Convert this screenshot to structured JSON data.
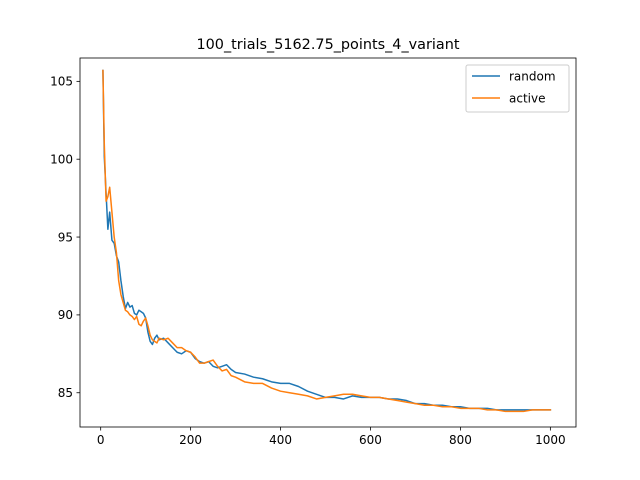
{
  "chart_data": {
    "type": "line",
    "title": "100_trials_5162.75_points_4_variant",
    "xlabel": "",
    "ylabel": "",
    "xlim": [
      -46,
      1057
    ],
    "ylim": [
      82.8,
      106.5
    ],
    "xticks": [
      0,
      200,
      400,
      600,
      800,
      1000
    ],
    "yticks": [
      85,
      90,
      95,
      100,
      105
    ],
    "xtick_labels": [
      "0",
      "200",
      "400",
      "600",
      "800",
      "1000"
    ],
    "ytick_labels": [
      "85",
      "90",
      "95",
      "100",
      "105"
    ],
    "grid": false,
    "legend_position": "top-right",
    "series": [
      {
        "name": "random",
        "color": "#1f77b4",
        "x": [
          5,
          8,
          12,
          16,
          20,
          25,
          30,
          35,
          40,
          45,
          50,
          55,
          60,
          65,
          70,
          75,
          80,
          85,
          90,
          95,
          100,
          105,
          110,
          115,
          120,
          125,
          130,
          140,
          150,
          160,
          170,
          180,
          190,
          200,
          210,
          220,
          230,
          240,
          250,
          260,
          270,
          280,
          290,
          300,
          320,
          340,
          360,
          380,
          400,
          420,
          440,
          460,
          480,
          500,
          520,
          540,
          560,
          580,
          600,
          620,
          640,
          660,
          680,
          700,
          720,
          740,
          760,
          780,
          800,
          820,
          840,
          860,
          880,
          900,
          920,
          940,
          960,
          980,
          1000
        ],
        "values": [
          105.7,
          100.2,
          97.8,
          95.5,
          96.6,
          94.8,
          94.6,
          93.8,
          93.4,
          92.2,
          91.2,
          90.4,
          90.8,
          90.5,
          90.6,
          90.1,
          90.0,
          90.3,
          90.2,
          90.1,
          89.8,
          88.9,
          88.3,
          88.1,
          88.5,
          88.7,
          88.4,
          88.5,
          88.2,
          87.9,
          87.6,
          87.5,
          87.7,
          87.6,
          87.2,
          87.0,
          86.9,
          87.0,
          86.7,
          86.6,
          86.7,
          86.8,
          86.5,
          86.3,
          86.2,
          86.0,
          85.9,
          85.7,
          85.6,
          85.6,
          85.4,
          85.1,
          84.9,
          84.7,
          84.7,
          84.6,
          84.8,
          84.7,
          84.7,
          84.7,
          84.6,
          84.6,
          84.5,
          84.3,
          84.3,
          84.2,
          84.2,
          84.1,
          84.1,
          84.0,
          84.0,
          84.0,
          83.9,
          83.9,
          83.9,
          83.9,
          83.9,
          83.9,
          83.9
        ]
      },
      {
        "name": "active",
        "color": "#ff7f0e",
        "x": [
          5,
          8,
          12,
          16,
          20,
          25,
          30,
          35,
          40,
          45,
          50,
          55,
          60,
          65,
          70,
          75,
          80,
          85,
          90,
          95,
          100,
          105,
          110,
          115,
          120,
          125,
          130,
          140,
          150,
          160,
          170,
          180,
          190,
          200,
          210,
          220,
          230,
          240,
          250,
          260,
          270,
          280,
          290,
          300,
          320,
          340,
          360,
          380,
          400,
          420,
          440,
          460,
          480,
          500,
          520,
          540,
          560,
          580,
          600,
          620,
          640,
          660,
          680,
          700,
          720,
          740,
          760,
          780,
          800,
          820,
          840,
          860,
          880,
          900,
          920,
          940,
          960,
          980,
          1000
        ],
        "values": [
          105.7,
          101.0,
          97.3,
          97.6,
          98.2,
          96.6,
          95.0,
          94.0,
          92.2,
          91.3,
          90.8,
          90.3,
          90.2,
          90.0,
          89.9,
          89.7,
          89.9,
          89.4,
          89.3,
          89.6,
          89.8,
          89.3,
          88.7,
          88.4,
          88.3,
          88.2,
          88.5,
          88.4,
          88.5,
          88.2,
          87.9,
          87.9,
          87.7,
          87.6,
          87.3,
          86.9,
          86.9,
          87.0,
          87.1,
          86.7,
          86.4,
          86.5,
          86.1,
          86.0,
          85.7,
          85.6,
          85.6,
          85.3,
          85.1,
          85.0,
          84.9,
          84.8,
          84.6,
          84.7,
          84.8,
          84.9,
          84.9,
          84.8,
          84.7,
          84.7,
          84.6,
          84.5,
          84.4,
          84.3,
          84.2,
          84.2,
          84.1,
          84.1,
          84.0,
          84.0,
          84.0,
          83.9,
          83.9,
          83.8,
          83.8,
          83.8,
          83.9,
          83.9,
          83.9
        ]
      }
    ]
  }
}
